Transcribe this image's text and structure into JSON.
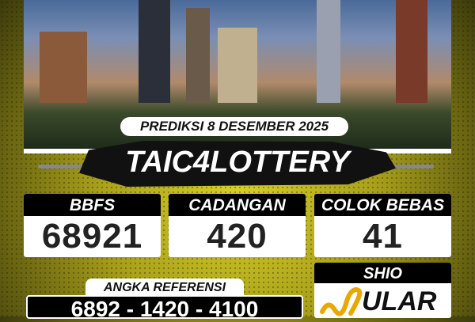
{
  "header": {
    "date_label": "PREDIKSI 8 DESEMBER 2025",
    "brand": "TAIC4LOTTERY"
  },
  "boxes": [
    {
      "label": "BBFS",
      "value": "68921"
    },
    {
      "label": "CADANGAN",
      "value": "420"
    },
    {
      "label": "COLOK BEBAS",
      "value": "41"
    }
  ],
  "shio": {
    "label": "SHIO",
    "value": "ULAR",
    "icon": "snake-icon"
  },
  "referensi": {
    "label": "ANGKA REFERENSI",
    "value": "6892 - 1420 - 4100"
  },
  "colors": {
    "accent": "#c8c020",
    "panel": "#000000"
  }
}
